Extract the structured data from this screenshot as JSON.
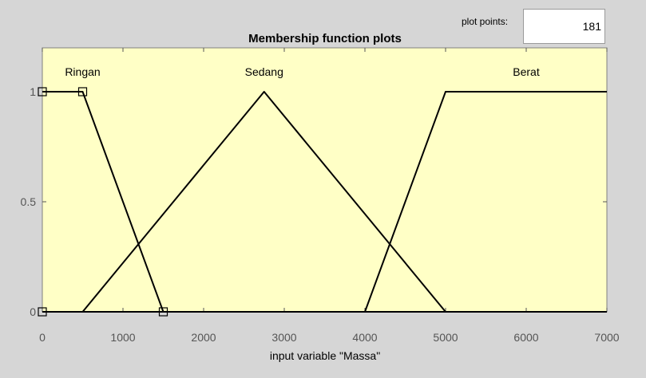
{
  "plot_points": {
    "label": "plot points:",
    "value": "181"
  },
  "chart_data": {
    "type": "line",
    "title": "Membership function plots",
    "xlabel": "input variable \"Massa\"",
    "ylabel": "",
    "xlim": [
      0,
      7000
    ],
    "ylim": [
      0,
      1.2
    ],
    "x_ticks": [
      0,
      1000,
      2000,
      3000,
      4000,
      5000,
      6000,
      7000
    ],
    "y_ticks": [
      0,
      0.5,
      1
    ],
    "y_tick_labels": [
      "0",
      "0.5",
      "1"
    ],
    "grid": false,
    "background_color": "#ffffc6",
    "line_color": "#000000",
    "series": [
      {
        "name": "Ringan",
        "label_x": 500,
        "label_y": 1.09,
        "x": [
          0,
          500,
          1500,
          7000
        ],
        "y": [
          1,
          1,
          0,
          0
        ]
      },
      {
        "name": "Sedang",
        "label_x": 2750,
        "label_y": 1.09,
        "x": [
          0,
          500,
          2750,
          5000,
          7000
        ],
        "y": [
          0,
          0,
          1,
          0,
          0
        ]
      },
      {
        "name": "Berat",
        "label_x": 6000,
        "label_y": 1.09,
        "x": [
          0,
          4000,
          5000,
          7000
        ],
        "y": [
          0,
          0,
          1,
          1
        ]
      }
    ],
    "markers": [
      {
        "x": 0,
        "y": 1
      },
      {
        "x": 500,
        "y": 1
      },
      {
        "x": 0,
        "y": 0
      },
      {
        "x": 1500,
        "y": 0
      }
    ]
  }
}
